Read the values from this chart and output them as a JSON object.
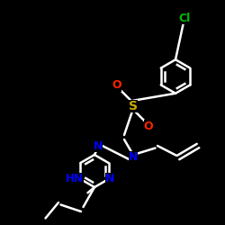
{
  "background_color": "#000000",
  "bond_color": "#ffffff",
  "atom_colors": {
    "O": "#ff2200",
    "S": "#ccaa00",
    "N": "#0000ff",
    "Cl": "#00bb00",
    "C": "#ffffff"
  },
  "figsize": [
    2.5,
    2.5
  ],
  "dpi": 100
}
